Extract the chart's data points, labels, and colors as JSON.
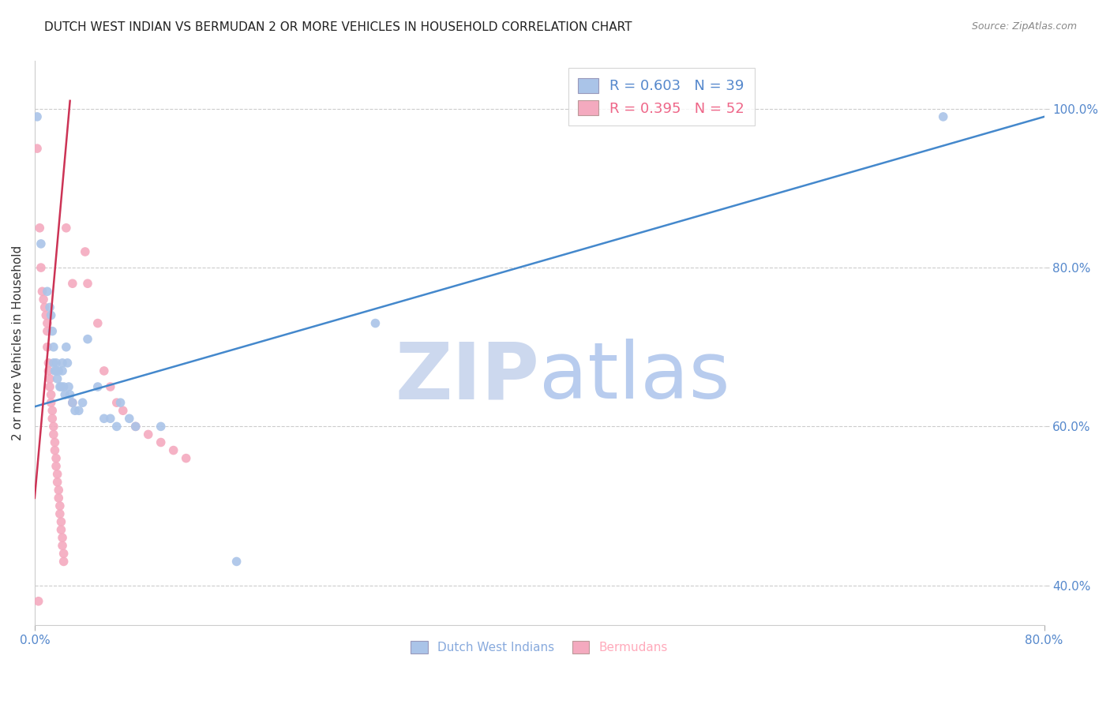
{
  "title": "DUTCH WEST INDIAN VS BERMUDAN 2 OR MORE VEHICLES IN HOUSEHOLD CORRELATION CHART",
  "source": "Source: ZipAtlas.com",
  "xlim": [
    0.0,
    0.8
  ],
  "ylim": [
    0.35,
    1.06
  ],
  "xtick_vals": [
    0.0,
    0.8
  ],
  "xtick_labels": [
    "0.0%",
    "80.0%"
  ],
  "ytick_vals_right": [
    0.4,
    0.6,
    0.8,
    1.0
  ],
  "ytick_labels_right": [
    "40.0%",
    "60.0%",
    "80.0%",
    "100.0%"
  ],
  "ytick_vals_grid": [
    0.4,
    0.6,
    0.8,
    1.0
  ],
  "legend_entries": [
    {
      "label": "R = 0.603   N = 39",
      "color": "#5588cc"
    },
    {
      "label": "R = 0.395   N = 52",
      "color": "#ee6688"
    }
  ],
  "legend_bottom": [
    {
      "label": "Dutch West Indians",
      "color": "#88aadd"
    },
    {
      "label": "Bermudans",
      "color": "#ffaabb"
    }
  ],
  "blue_dots": [
    [
      0.002,
      0.99
    ],
    [
      0.005,
      0.83
    ],
    [
      0.01,
      0.77
    ],
    [
      0.012,
      0.75
    ],
    [
      0.013,
      0.74
    ],
    [
      0.014,
      0.72
    ],
    [
      0.015,
      0.7
    ],
    [
      0.015,
      0.68
    ],
    [
      0.016,
      0.67
    ],
    [
      0.017,
      0.68
    ],
    [
      0.017,
      0.67
    ],
    [
      0.018,
      0.66
    ],
    [
      0.019,
      0.67
    ],
    [
      0.02,
      0.65
    ],
    [
      0.021,
      0.65
    ],
    [
      0.022,
      0.68
    ],
    [
      0.022,
      0.67
    ],
    [
      0.023,
      0.65
    ],
    [
      0.024,
      0.64
    ],
    [
      0.025,
      0.7
    ],
    [
      0.026,
      0.68
    ],
    [
      0.027,
      0.65
    ],
    [
      0.028,
      0.64
    ],
    [
      0.03,
      0.63
    ],
    [
      0.032,
      0.62
    ],
    [
      0.035,
      0.62
    ],
    [
      0.038,
      0.63
    ],
    [
      0.042,
      0.71
    ],
    [
      0.05,
      0.65
    ],
    [
      0.055,
      0.61
    ],
    [
      0.06,
      0.61
    ],
    [
      0.065,
      0.6
    ],
    [
      0.068,
      0.63
    ],
    [
      0.075,
      0.61
    ],
    [
      0.08,
      0.6
    ],
    [
      0.1,
      0.6
    ],
    [
      0.16,
      0.43
    ],
    [
      0.27,
      0.73
    ],
    [
      0.72,
      0.99
    ]
  ],
  "pink_dots": [
    [
      0.002,
      0.95
    ],
    [
      0.004,
      0.85
    ],
    [
      0.005,
      0.8
    ],
    [
      0.006,
      0.77
    ],
    [
      0.007,
      0.76
    ],
    [
      0.008,
      0.75
    ],
    [
      0.009,
      0.74
    ],
    [
      0.01,
      0.73
    ],
    [
      0.01,
      0.72
    ],
    [
      0.01,
      0.7
    ],
    [
      0.011,
      0.68
    ],
    [
      0.011,
      0.67
    ],
    [
      0.012,
      0.66
    ],
    [
      0.012,
      0.65
    ],
    [
      0.013,
      0.64
    ],
    [
      0.013,
      0.63
    ],
    [
      0.014,
      0.62
    ],
    [
      0.014,
      0.61
    ],
    [
      0.015,
      0.6
    ],
    [
      0.015,
      0.59
    ],
    [
      0.016,
      0.58
    ],
    [
      0.016,
      0.57
    ],
    [
      0.017,
      0.56
    ],
    [
      0.017,
      0.55
    ],
    [
      0.018,
      0.54
    ],
    [
      0.018,
      0.53
    ],
    [
      0.019,
      0.52
    ],
    [
      0.019,
      0.51
    ],
    [
      0.02,
      0.5
    ],
    [
      0.02,
      0.49
    ],
    [
      0.021,
      0.48
    ],
    [
      0.021,
      0.47
    ],
    [
      0.022,
      0.46
    ],
    [
      0.022,
      0.45
    ],
    [
      0.023,
      0.44
    ],
    [
      0.023,
      0.43
    ],
    [
      0.025,
      0.85
    ],
    [
      0.03,
      0.78
    ],
    [
      0.03,
      0.63
    ],
    [
      0.04,
      0.82
    ],
    [
      0.042,
      0.78
    ],
    [
      0.05,
      0.73
    ],
    [
      0.055,
      0.67
    ],
    [
      0.06,
      0.65
    ],
    [
      0.065,
      0.63
    ],
    [
      0.07,
      0.62
    ],
    [
      0.08,
      0.6
    ],
    [
      0.09,
      0.59
    ],
    [
      0.1,
      0.58
    ],
    [
      0.11,
      0.57
    ],
    [
      0.12,
      0.56
    ],
    [
      0.003,
      0.38
    ]
  ],
  "blue_line": {
    "x0": 0.0,
    "y0": 0.625,
    "x1": 0.8,
    "y1": 0.99
  },
  "pink_line": {
    "x0": 0.0,
    "y0": 0.51,
    "x1": 0.028,
    "y1": 1.01
  },
  "dot_size": 70,
  "blue_dot_color": "#aac4e8",
  "pink_dot_color": "#f4aabf",
  "blue_line_color": "#4488cc",
  "pink_line_color": "#cc3355",
  "grid_color": "#cccccc",
  "background_color": "#ffffff",
  "title_color": "#222222",
  "axis_label_color": "#333333",
  "right_axis_color": "#5588cc",
  "watermark_zip_color": "#ccd8ee",
  "watermark_atlas_color": "#b8ccee"
}
